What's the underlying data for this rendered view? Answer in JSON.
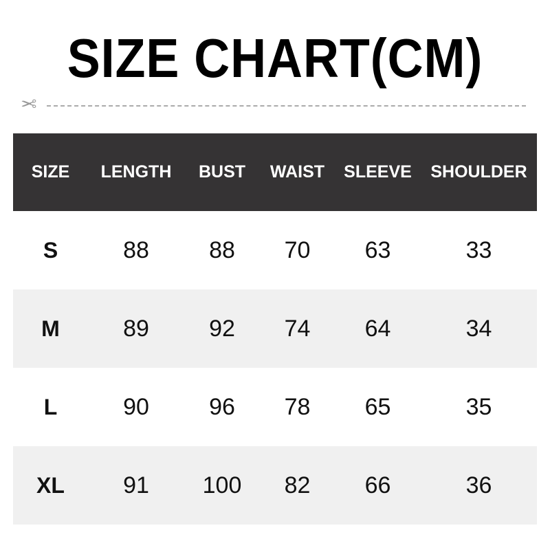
{
  "title": "SIZE CHART(CM)",
  "icons": {
    "cut": "scissors-icon"
  },
  "colors": {
    "header_bg": "#353334",
    "alt_row_bg": "#f0f0f0"
  },
  "table": {
    "headers": [
      "SIZE",
      "LENGTH",
      "BUST",
      "WAIST",
      "SLEEVE",
      "SHOULDER"
    ],
    "rows": [
      [
        "S",
        "88",
        "88",
        "70",
        "63",
        "33"
      ],
      [
        "M",
        "89",
        "92",
        "74",
        "64",
        "34"
      ],
      [
        "L",
        "90",
        "96",
        "78",
        "65",
        "35"
      ],
      [
        "XL",
        "91",
        "100",
        "82",
        "66",
        "36"
      ]
    ]
  }
}
